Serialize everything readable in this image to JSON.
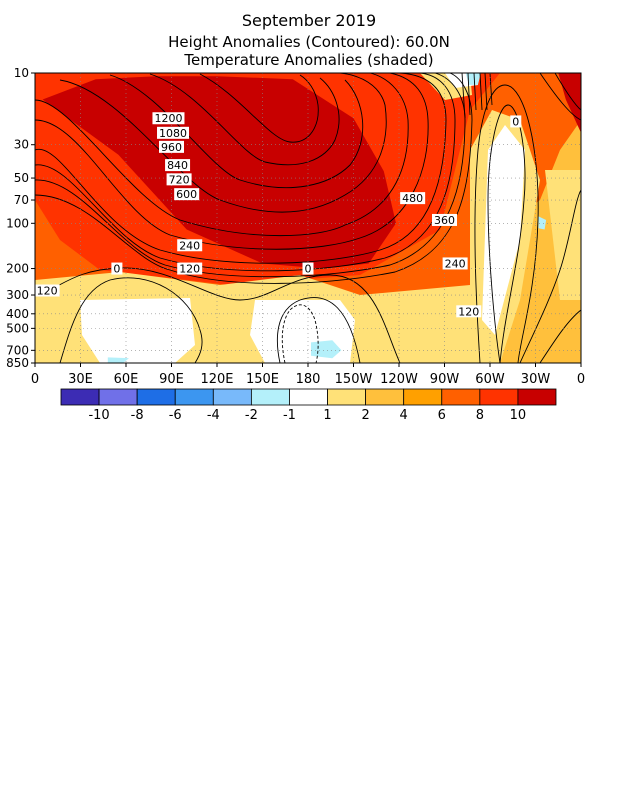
{
  "chart_data": {
    "type": "contour",
    "title": "September 2019",
    "subtitle_1": "Height Anomalies (Contoured): 60.0N",
    "subtitle_2": "Temperature Anomalies (shaded)",
    "x_ticks": [
      "0",
      "30E",
      "60E",
      "90E",
      "120E",
      "150E",
      "180",
      "150W",
      "120W",
      "90W",
      "60W",
      "30W",
      "0"
    ],
    "x_lon": [
      0,
      30,
      60,
      90,
      120,
      150,
      180,
      210,
      240,
      270,
      300,
      330,
      360
    ],
    "y_ticks": [
      "10",
      "30",
      "50",
      "70",
      "100",
      "200",
      "300",
      "400",
      "500",
      "700",
      "850"
    ],
    "y_pressure": [
      10,
      30,
      50,
      70,
      100,
      200,
      300,
      400,
      500,
      700,
      850
    ],
    "xlim": [
      0,
      360
    ],
    "ylim": [
      850,
      10
    ],
    "y_scale": "log (pressure)",
    "grid": true,
    "colorbar": {
      "labels": [
        "-10",
        "-8",
        "-6",
        "-4",
        "-2",
        "-1",
        "1",
        "2",
        "4",
        "6",
        "8",
        "10"
      ],
      "colors": [
        "#3c2cb4",
        "#7070e8",
        "#1e6ee6",
        "#3c96f0",
        "#78b9fa",
        "#b4f0fa",
        "#ffffff",
        "#ffe178",
        "#ffc03c",
        "#ffa000",
        "#ff6000",
        "#ff3300",
        "#c80000"
      ]
    },
    "shading_regions": [
      {
        "anomaly": 10,
        "color": "#c80000",
        "lon": [
          5,
          55,
          100,
          150,
          190,
          220,
          238,
          230,
          210,
          170,
          120,
          80,
          40,
          5
        ],
        "p": [
          15,
          35,
          110,
          185,
          200,
          185,
          100,
          45,
          20,
          11,
          10.5,
          10.5,
          11,
          15
        ]
      },
      {
        "anomaly": 10,
        "color": "#c80000",
        "lon": [
          345,
          360,
          360,
          350
        ],
        "p": [
          10,
          10,
          25,
          15
        ]
      },
      {
        "anomaly": -1,
        "color": "#b4f0fa",
        "lon": [
          182,
          196,
          202,
          196,
          182
        ],
        "p": [
          620,
          600,
          700,
          790,
          760
        ]
      },
      {
        "anomaly": -1,
        "color": "#b4f0fa",
        "lon": [
          332,
          337,
          336,
          332
        ],
        "p": [
          90,
          95,
          110,
          108
        ]
      },
      {
        "anomaly": -1,
        "color": "#b4f0fa",
        "lon": [
          48,
          62,
          58,
          48
        ],
        "p": [
          780,
          790,
          850,
          850
        ]
      },
      {
        "anomaly": -1,
        "color": "#b4f0fa",
        "lon": [
          284,
          294,
          292,
          286
        ],
        "p": [
          10,
          10,
          12,
          12
        ]
      }
    ],
    "contour_labels": [
      {
        "text": "1200",
        "lon": 88,
        "p": 20
      },
      {
        "text": "1080",
        "lon": 91,
        "p": 25
      },
      {
        "text": "960",
        "lon": 90,
        "p": 31
      },
      {
        "text": "840",
        "lon": 94,
        "p": 41
      },
      {
        "text": "720",
        "lon": 95,
        "p": 51
      },
      {
        "text": "600",
        "lon": 100,
        "p": 64
      },
      {
        "text": "480",
        "lon": 249,
        "p": 68
      },
      {
        "text": "360",
        "lon": 270,
        "p": 95
      },
      {
        "text": "240",
        "lon": 102,
        "p": 140
      },
      {
        "text": "240",
        "lon": 277,
        "p": 185
      },
      {
        "text": "120",
        "lon": 102,
        "p": 200
      },
      {
        "text": "120",
        "lon": 8,
        "p": 280
      },
      {
        "text": "120",
        "lon": 286,
        "p": 385
      },
      {
        "text": "0",
        "lon": 54,
        "p": 200
      },
      {
        "text": "0",
        "lon": 180,
        "p": 200
      },
      {
        "text": "0",
        "lon": 317,
        "p": 21
      }
    ]
  }
}
